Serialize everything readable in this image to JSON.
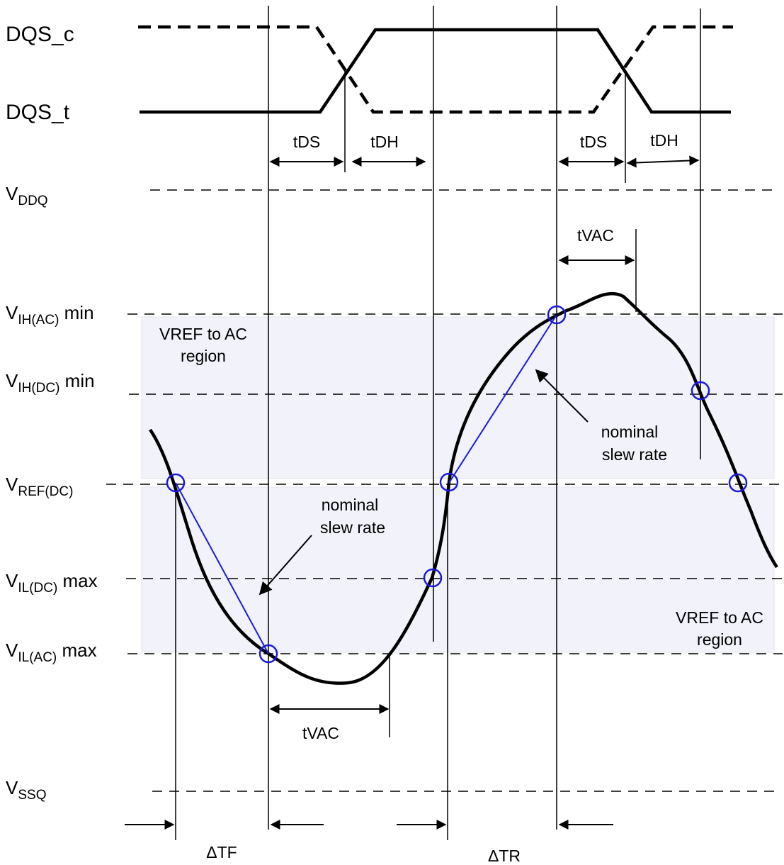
{
  "signals": {
    "dqs_c": "DQS_c",
    "dqs_t": "DQS_t"
  },
  "timing": {
    "tds": "tDS",
    "tdh": "tDH",
    "tvac": "tVAC",
    "delta_tf": "ΔTF",
    "delta_tr": "ΔTR"
  },
  "levels": {
    "vddq": {
      "main": "V",
      "sub": "DDQ",
      "suffix": ""
    },
    "vih_ac": {
      "main": "V",
      "sub": "IH(AC)",
      "suffix": " min"
    },
    "vih_dc": {
      "main": "V",
      "sub": "IH(DC)",
      "suffix": " min"
    },
    "vref_dc": {
      "main": "V",
      "sub": "REF(DC)",
      "suffix": ""
    },
    "vil_dc": {
      "main": "V",
      "sub": "IL(DC)",
      "suffix": " max"
    },
    "vil_ac": {
      "main": "V",
      "sub": "IL(AC)",
      "suffix": " max"
    },
    "vssq": {
      "main": "V",
      "sub": "SSQ",
      "suffix": ""
    }
  },
  "annotations": {
    "region_line1": "VREF to AC",
    "region_line2": "region",
    "slew_line1": "nominal",
    "slew_line2": "slew rate"
  },
  "colors": {
    "region_fill": "#f1f2fa",
    "marker": "#1a1adb",
    "slew_line": "#1a1adb",
    "ink": "#000000"
  }
}
